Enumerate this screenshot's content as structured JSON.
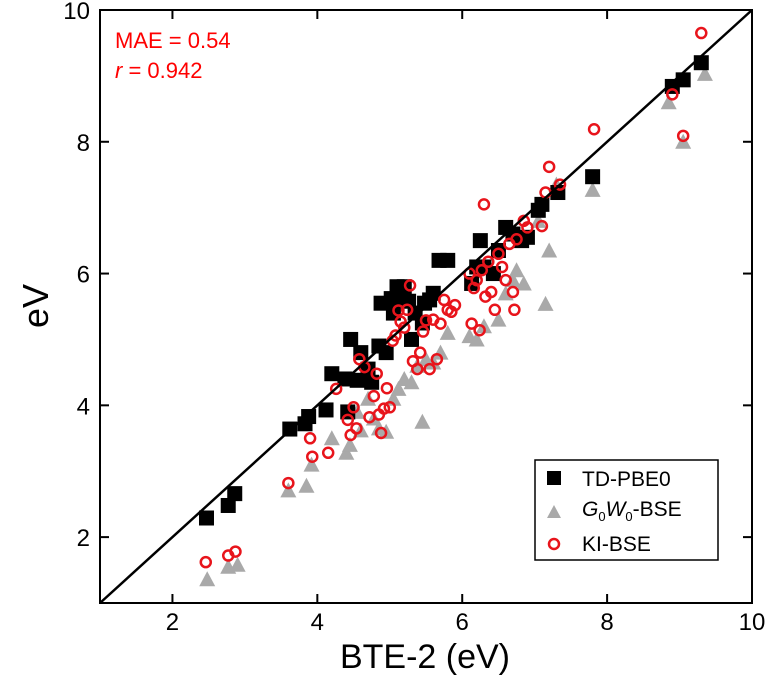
{
  "chart_data": {
    "type": "scatter",
    "title": "",
    "xlabel": "BTE-2 (eV)",
    "ylabel": "eV",
    "xlim": [
      1,
      10
    ],
    "ylim": [
      1,
      10
    ],
    "xticks": [
      2,
      4,
      6,
      8,
      10
    ],
    "yticks": [
      2,
      4,
      6,
      8,
      10
    ],
    "grid": false,
    "legend_position": "bottom-right",
    "diagonal_line": {
      "from": [
        1,
        1
      ],
      "to": [
        10,
        10
      ],
      "color": "#000000"
    },
    "annotations": {
      "mae_text": "MAE = 0.54",
      "r_symbol": "r",
      "r_value": " = 0.942",
      "color": "#ff0000"
    },
    "colors": {
      "td_pbe0": "#000000",
      "g0w0_bse": "#a9a9a9",
      "ki_bse": "#e8141b",
      "annotation": "#ff0000"
    },
    "series": [
      {
        "name": "TD-PBE0",
        "label_parts": {
          "text": "TD-PBE0"
        },
        "marker": "square",
        "points": [
          [
            2.47,
            2.29
          ],
          [
            2.77,
            2.48
          ],
          [
            2.86,
            2.66
          ],
          [
            3.62,
            3.64
          ],
          [
            3.83,
            3.72
          ],
          [
            3.88,
            3.83
          ],
          [
            4.12,
            3.93
          ],
          [
            4.2,
            4.48
          ],
          [
            4.38,
            4.4
          ],
          [
            4.42,
            3.9
          ],
          [
            4.46,
            5.0
          ],
          [
            4.55,
            4.38
          ],
          [
            4.6,
            4.8
          ],
          [
            4.7,
            4.55
          ],
          [
            4.75,
            4.35
          ],
          [
            4.85,
            4.9
          ],
          [
            4.88,
            5.55
          ],
          [
            4.95,
            4.8
          ],
          [
            5.02,
            5.62
          ],
          [
            5.05,
            5.4
          ],
          [
            5.1,
            5.8
          ],
          [
            5.13,
            5.6
          ],
          [
            5.2,
            5.8
          ],
          [
            5.26,
            5.58
          ],
          [
            5.3,
            5.0
          ],
          [
            5.35,
            5.4
          ],
          [
            5.45,
            5.25
          ],
          [
            5.48,
            5.55
          ],
          [
            5.55,
            5.6
          ],
          [
            5.6,
            5.7
          ],
          [
            5.68,
            6.2
          ],
          [
            5.8,
            6.2
          ],
          [
            6.13,
            5.85
          ],
          [
            6.2,
            6.1
          ],
          [
            6.25,
            6.5
          ],
          [
            6.3,
            6.1
          ],
          [
            6.43,
            6.0
          ],
          [
            6.5,
            6.35
          ],
          [
            6.6,
            6.7
          ],
          [
            6.7,
            6.6
          ],
          [
            6.82,
            6.5
          ],
          [
            6.9,
            6.55
          ],
          [
            7.05,
            6.96
          ],
          [
            7.1,
            7.05
          ],
          [
            7.32,
            7.23
          ],
          [
            7.8,
            7.47
          ],
          [
            8.9,
            8.84
          ],
          [
            9.05,
            8.94
          ],
          [
            9.3,
            9.2
          ]
        ]
      },
      {
        "name": "G0W0-BSE",
        "label_parts": {
          "prefix": "G",
          "sub1": "0",
          "mid": "W",
          "sub2": "0",
          "suffix": "-BSE"
        },
        "marker": "triangle",
        "points": [
          [
            2.48,
            1.36
          ],
          [
            2.77,
            1.55
          ],
          [
            2.9,
            1.58
          ],
          [
            3.6,
            2.71
          ],
          [
            3.85,
            2.78
          ],
          [
            3.92,
            3.1
          ],
          [
            4.2,
            3.5
          ],
          [
            4.4,
            3.28
          ],
          [
            4.45,
            3.4
          ],
          [
            4.55,
            3.9
          ],
          [
            4.6,
            3.62
          ],
          [
            4.7,
            4.1
          ],
          [
            4.78,
            3.8
          ],
          [
            4.85,
            3.65
          ],
          [
            4.95,
            3.6
          ],
          [
            5.05,
            4.1
          ],
          [
            5.12,
            4.25
          ],
          [
            5.2,
            4.4
          ],
          [
            5.3,
            4.35
          ],
          [
            5.38,
            4.6
          ],
          [
            5.45,
            3.75
          ],
          [
            5.5,
            4.7
          ],
          [
            5.6,
            4.65
          ],
          [
            5.7,
            4.8
          ],
          [
            5.8,
            5.1
          ],
          [
            6.1,
            5.05
          ],
          [
            6.2,
            5.0
          ],
          [
            6.3,
            5.2
          ],
          [
            6.5,
            5.3
          ],
          [
            6.6,
            5.7
          ],
          [
            6.7,
            5.9
          ],
          [
            6.75,
            6.05
          ],
          [
            6.85,
            5.85
          ],
          [
            7.05,
            6.8
          ],
          [
            7.15,
            5.54
          ],
          [
            7.2,
            6.35
          ],
          [
            7.3,
            7.35
          ],
          [
            7.8,
            7.27
          ],
          [
            8.85,
            8.6
          ],
          [
            9.05,
            8.0
          ],
          [
            9.35,
            9.03
          ]
        ]
      },
      {
        "name": "KI-BSE",
        "label_parts": {
          "text": "KI-BSE"
        },
        "marker": "circle",
        "points": [
          [
            2.46,
            1.62
          ],
          [
            2.77,
            1.72
          ],
          [
            2.87,
            1.78
          ],
          [
            3.6,
            2.82
          ],
          [
            3.9,
            3.5
          ],
          [
            3.93,
            3.22
          ],
          [
            4.15,
            3.28
          ],
          [
            4.26,
            4.25
          ],
          [
            4.42,
            3.78
          ],
          [
            4.46,
            3.55
          ],
          [
            4.5,
            3.97
          ],
          [
            4.54,
            3.65
          ],
          [
            4.58,
            4.7
          ],
          [
            4.65,
            4.58
          ],
          [
            4.72,
            3.82
          ],
          [
            4.78,
            4.14
          ],
          [
            4.82,
            4.48
          ],
          [
            4.85,
            3.86
          ],
          [
            4.88,
            3.58
          ],
          [
            4.92,
            3.95
          ],
          [
            4.96,
            4.26
          ],
          [
            5.0,
            3.97
          ],
          [
            5.04,
            4.98
          ],
          [
            5.08,
            5.06
          ],
          [
            5.12,
            5.44
          ],
          [
            5.15,
            5.27
          ],
          [
            5.2,
            5.18
          ],
          [
            5.24,
            5.45
          ],
          [
            5.28,
            5.82
          ],
          [
            5.32,
            4.67
          ],
          [
            5.38,
            4.55
          ],
          [
            5.42,
            4.8
          ],
          [
            5.46,
            5.12
          ],
          [
            5.5,
            5.29
          ],
          [
            5.55,
            4.55
          ],
          [
            5.6,
            5.3
          ],
          [
            5.65,
            4.7
          ],
          [
            5.7,
            5.24
          ],
          [
            5.75,
            5.6
          ],
          [
            5.8,
            5.45
          ],
          [
            5.85,
            5.42
          ],
          [
            5.9,
            5.52
          ],
          [
            6.1,
            6.0
          ],
          [
            6.13,
            5.24
          ],
          [
            6.16,
            5.78
          ],
          [
            6.2,
            5.9
          ],
          [
            6.24,
            5.14
          ],
          [
            6.27,
            6.05
          ],
          [
            6.3,
            7.05
          ],
          [
            6.32,
            5.65
          ],
          [
            6.36,
            6.18
          ],
          [
            6.4,
            5.72
          ],
          [
            6.45,
            5.45
          ],
          [
            6.5,
            6.3
          ],
          [
            6.55,
            6.1
          ],
          [
            6.6,
            5.9
          ],
          [
            6.65,
            6.45
          ],
          [
            6.7,
            5.72
          ],
          [
            6.72,
            5.45
          ],
          [
            6.75,
            6.52
          ],
          [
            6.85,
            6.8
          ],
          [
            6.9,
            6.7
          ],
          [
            7.1,
            6.72
          ],
          [
            7.15,
            7.23
          ],
          [
            7.2,
            7.62
          ],
          [
            7.35,
            7.35
          ],
          [
            7.82,
            8.19
          ],
          [
            8.9,
            8.72
          ],
          [
            9.05,
            8.09
          ],
          [
            9.3,
            9.65
          ]
        ]
      }
    ]
  }
}
